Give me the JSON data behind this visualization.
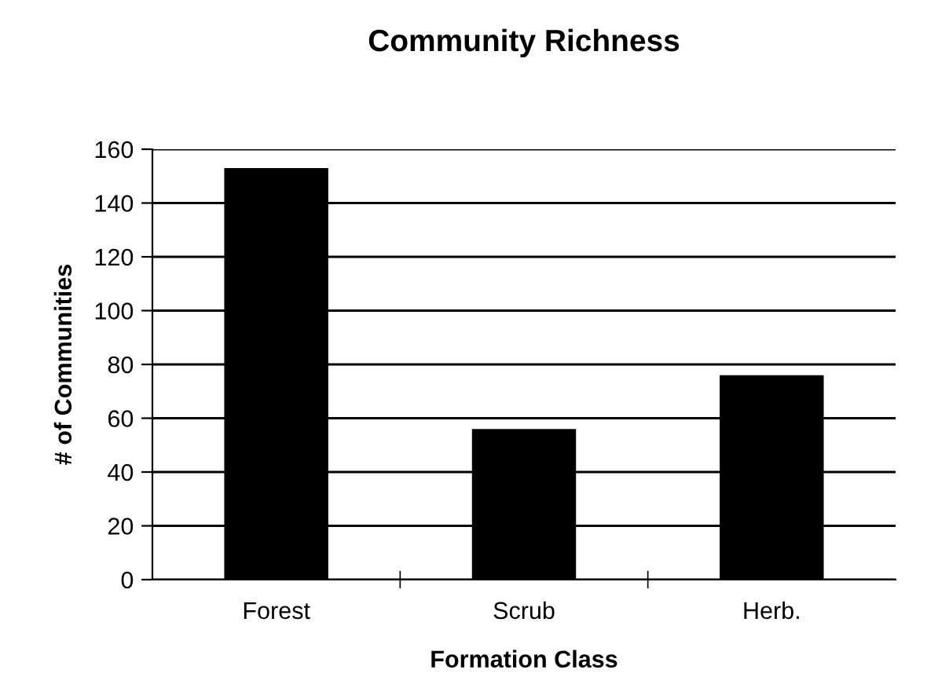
{
  "chart_data": {
    "type": "bar",
    "title": "Community Richness",
    "xlabel": "Formation Class",
    "ylabel": "# of Communities",
    "categories": [
      "Forest",
      "Scrub",
      "Herb."
    ],
    "values": [
      153,
      56,
      76
    ],
    "color": "#000000",
    "ylim": [
      0,
      160
    ],
    "yticks": [
      0,
      20,
      40,
      60,
      80,
      100,
      120,
      140,
      160
    ],
    "grid": "y",
    "legend": false
  }
}
